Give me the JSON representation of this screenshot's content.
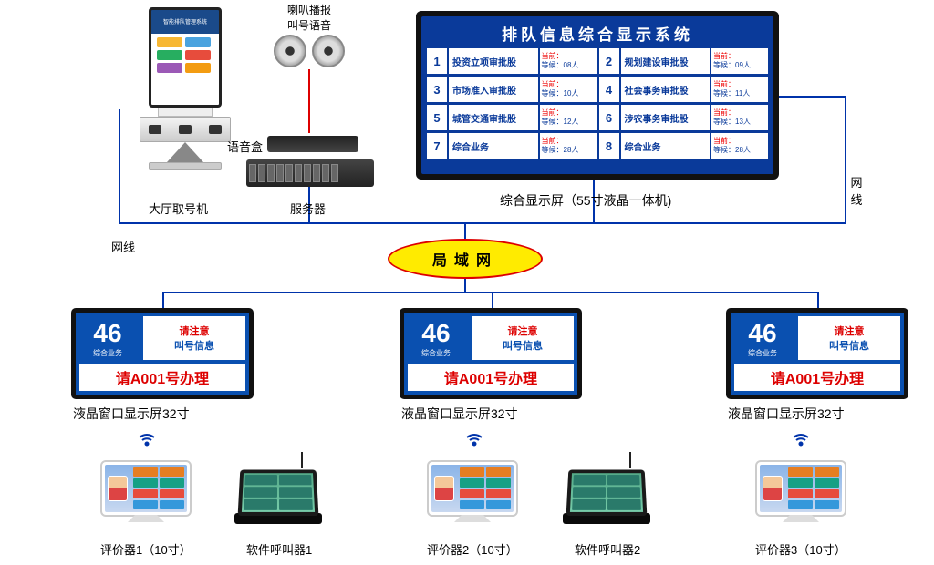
{
  "colors": {
    "line": "#0033aa",
    "lan_fill": "#ffeb00",
    "lan_border": "#d00d00",
    "display_blue": "#0a3a9a",
    "window_blue": "#0a50b0",
    "red": "#d00d00"
  },
  "kiosk": {
    "label": "大厅取号机",
    "header": "智能排队管理系统",
    "button_colors": [
      "#f7b733",
      "#4aa3df",
      "#27ae60",
      "#e74c3c",
      "#9b59b6",
      "#f39c12"
    ]
  },
  "speaker": {
    "line1": "喇叭播报",
    "line2": "叫号语音"
  },
  "voicebox": {
    "label": "语音盒"
  },
  "server": {
    "label": "服务器"
  },
  "main_display": {
    "label": "综合显示屏（55寸液晶一体机)",
    "title": "排队信息综合显示系统",
    "rows": [
      {
        "n": "1",
        "name": "投资立项审批股",
        "cur": "当前：",
        "wait": "等候：08人"
      },
      {
        "n": "2",
        "name": "规划建设审批股",
        "cur": "当前：",
        "wait": "等候：09人"
      },
      {
        "n": "3",
        "name": "市场准入审批股",
        "cur": "当前：",
        "wait": "等候：10人"
      },
      {
        "n": "4",
        "name": "社会事务审批股",
        "cur": "当前：",
        "wait": "等候：11人"
      },
      {
        "n": "5",
        "name": "城管交通审批股",
        "cur": "当前：",
        "wait": "等候：12人"
      },
      {
        "n": "6",
        "name": "涉农事务审批股",
        "cur": "当前：",
        "wait": "等候：13人"
      },
      {
        "n": "7",
        "name": "综合业务",
        "cur": "当前：",
        "wait": "等候：28人"
      },
      {
        "n": "8",
        "name": "综合业务",
        "cur": "当前：",
        "wait": "等候：28人"
      }
    ]
  },
  "lan": {
    "label": "局域网"
  },
  "net_cable": {
    "right": "网线",
    "left": "网线"
  },
  "window_display": {
    "label": "液晶窗口显示屏32寸",
    "num": "46",
    "subtype": "综合业务",
    "attention1": "请注意",
    "attention2": "叫号信息",
    "calling": "请A001号办理"
  },
  "evaluators": [
    {
      "label": "评价器1（10寸）"
    },
    {
      "label": "评价器2（10寸）"
    },
    {
      "label": "评价器3（10寸）"
    }
  ],
  "callers": [
    {
      "label": "软件呼叫器1"
    },
    {
      "label": "软件呼叫器2"
    }
  ],
  "tablet_button_colors": [
    "#e67e22",
    "#e67e22",
    "#16a085",
    "#16a085",
    "#e74c3c",
    "#e74c3c",
    "#3498db",
    "#3498db"
  ]
}
